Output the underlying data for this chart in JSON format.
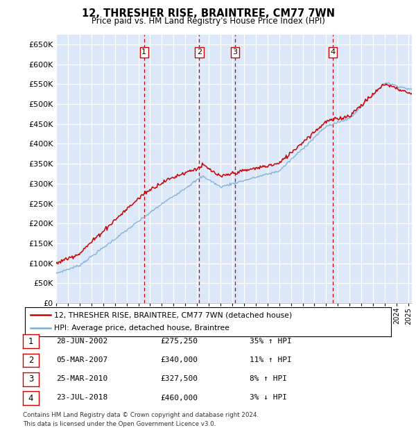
{
  "title": "12, THRESHER RISE, BRAINTREE, CM77 7WN",
  "subtitle": "Price paid vs. HM Land Registry's House Price Index (HPI)",
  "ylim": [
    0,
    675000
  ],
  "yticks": [
    0,
    50000,
    100000,
    150000,
    200000,
    250000,
    300000,
    350000,
    400000,
    450000,
    500000,
    550000,
    600000,
    650000
  ],
  "bg_color": "#dce8f8",
  "legend_entries": [
    "12, THRESHER RISE, BRAINTREE, CM77 7WN (detached house)",
    "HPI: Average price, detached house, Braintree"
  ],
  "sales": [
    {
      "label": "1",
      "date": "28-JUN-2002",
      "price": 275250,
      "pct": "35%",
      "dir": "↑",
      "x_year": 2002.49
    },
    {
      "label": "2",
      "date": "05-MAR-2007",
      "price": 340000,
      "pct": "11%",
      "dir": "↑",
      "x_year": 2007.18
    },
    {
      "label": "3",
      "date": "25-MAR-2010",
      "price": 327500,
      "pct": "8%",
      "dir": "↑",
      "x_year": 2010.23
    },
    {
      "label": "4",
      "date": "23-JUL-2018",
      "price": 460000,
      "pct": "3%",
      "dir": "↓",
      "x_year": 2018.56
    }
  ],
  "footer1": "Contains HM Land Registry data © Crown copyright and database right 2024.",
  "footer2": "This data is licensed under the Open Government Licence v3.0.",
  "red_color": "#cc0000",
  "blue_color": "#7aaed4",
  "xlim_start": 1995,
  "xlim_end": 2025.3
}
